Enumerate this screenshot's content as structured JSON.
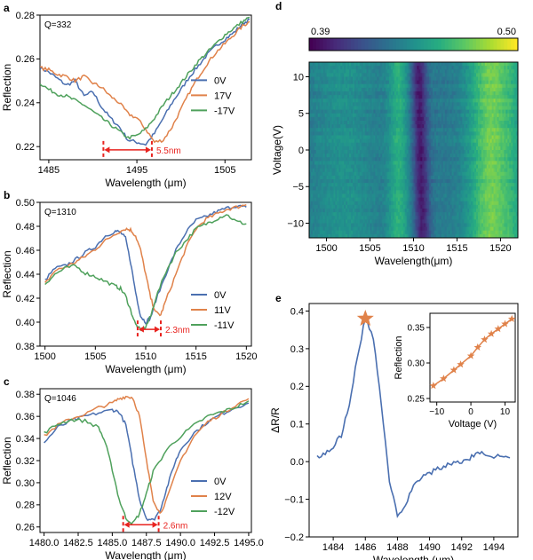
{
  "figure": {
    "background": "#ffffff"
  },
  "colors": {
    "blue": "#4a6fb0",
    "orange": "#e0824a",
    "green": "#4fa15c",
    "red": "#e8231f"
  },
  "chart_data": [
    {
      "id": "a",
      "type": "line",
      "panel_label": "a",
      "annotation": "Q=332",
      "xlabel": "Wavelength (μm)",
      "ylabel": "Reflection",
      "xlim": [
        1484,
        1508
      ],
      "ylim": [
        0.214,
        0.28
      ],
      "xticks": [
        1485,
        1495,
        1505
      ],
      "xtick_labels": [
        "1485",
        "1495",
        "1505"
      ],
      "yticks": [
        0.22,
        0.24,
        0.26,
        0.28
      ],
      "ytick_labels": [
        "0.22",
        "0.24",
        "0.26",
        "0.28"
      ],
      "series": [
        {
          "name": "0V",
          "color": "#4a6fb0",
          "x": [
            1484,
            1485,
            1486,
            1487,
            1488,
            1489,
            1490,
            1491,
            1492,
            1493,
            1494,
            1495,
            1496,
            1497,
            1498,
            1499,
            1500,
            1501,
            1502,
            1503,
            1504,
            1505,
            1506,
            1507,
            1507.8
          ],
          "y": [
            0.256,
            0.254,
            0.251,
            0.248,
            0.25,
            0.243,
            0.245,
            0.238,
            0.233,
            0.229,
            0.223,
            0.222,
            0.221,
            0.226,
            0.233,
            0.24,
            0.246,
            0.252,
            0.257,
            0.262,
            0.266,
            0.269,
            0.272,
            0.276,
            0.278
          ]
        },
        {
          "name": "17V",
          "color": "#e0824a",
          "x": [
            1484,
            1485,
            1486,
            1487,
            1488,
            1489,
            1490,
            1491,
            1492,
            1493,
            1494,
            1495,
            1496,
            1497,
            1498,
            1499,
            1500,
            1501,
            1502,
            1503,
            1504,
            1505,
            1506,
            1507,
            1507.8
          ],
          "y": [
            0.256,
            0.255,
            0.253,
            0.252,
            0.25,
            0.252,
            0.249,
            0.247,
            0.243,
            0.24,
            0.235,
            0.233,
            0.228,
            0.222,
            0.223,
            0.229,
            0.237,
            0.245,
            0.252,
            0.258,
            0.263,
            0.267,
            0.271,
            0.275,
            0.277
          ]
        },
        {
          "name": "-17V",
          "color": "#4fa15c",
          "x": [
            1484,
            1485,
            1486,
            1487,
            1488,
            1489,
            1490,
            1491,
            1492,
            1493,
            1494,
            1495,
            1496,
            1497,
            1498,
            1499,
            1500,
            1501,
            1502,
            1503,
            1504,
            1505,
            1506,
            1507,
            1507.8
          ],
          "y": [
            0.249,
            0.246,
            0.244,
            0.243,
            0.241,
            0.239,
            0.236,
            0.233,
            0.23,
            0.227,
            0.224,
            0.225,
            0.228,
            0.233,
            0.239,
            0.244,
            0.249,
            0.254,
            0.259,
            0.263,
            0.267,
            0.271,
            0.274,
            0.277,
            0.279
          ]
        }
      ],
      "legend": {
        "position": "center-right"
      },
      "arrow": {
        "x1": 1491.2,
        "x2": 1496.7,
        "y": 0.2185,
        "label": "5.5nm"
      }
    },
    {
      "id": "b",
      "type": "line",
      "panel_label": "b",
      "annotation": "Q=1310",
      "xlabel": "Wavelength (μm)",
      "ylabel": "Reflection",
      "xlim": [
        1499.5,
        1520.5
      ],
      "ylim": [
        0.38,
        0.5
      ],
      "xticks": [
        1500,
        1505,
        1510,
        1515,
        1520
      ],
      "xtick_labels": [
        "1500",
        "1505",
        "1510",
        "1515",
        "1520"
      ],
      "yticks": [
        0.38,
        0.4,
        0.42,
        0.44,
        0.46,
        0.48,
        0.5
      ],
      "ytick_labels": [
        "0.38",
        "0.40",
        "0.42",
        "0.44",
        "0.46",
        "0.48",
        "0.50"
      ],
      "series": [
        {
          "name": "0V",
          "color": "#4a6fb0",
          "x": [
            1500,
            1501,
            1502,
            1503,
            1504,
            1505,
            1506,
            1507,
            1507.5,
            1508,
            1508.5,
            1509,
            1509.5,
            1510,
            1510.5,
            1511,
            1512,
            1513,
            1514,
            1515,
            1516,
            1517,
            1518,
            1519,
            1520
          ],
          "y": [
            0.435,
            0.445,
            0.447,
            0.452,
            0.458,
            0.463,
            0.472,
            0.476,
            0.475,
            0.47,
            0.45,
            0.425,
            0.405,
            0.4,
            0.404,
            0.418,
            0.44,
            0.46,
            0.475,
            0.485,
            0.488,
            0.492,
            0.495,
            0.497,
            0.496
          ]
        },
        {
          "name": "11V",
          "color": "#e0824a",
          "x": [
            1500,
            1501,
            1502,
            1503,
            1504,
            1505,
            1506,
            1507,
            1508,
            1508.5,
            1509,
            1509.5,
            1510,
            1510.5,
            1511,
            1511.5,
            1512,
            1513,
            1514,
            1515,
            1516,
            1517,
            1518,
            1519,
            1520
          ],
          "y": [
            0.432,
            0.443,
            0.446,
            0.45,
            0.455,
            0.461,
            0.468,
            0.474,
            0.478,
            0.477,
            0.472,
            0.46,
            0.44,
            0.42,
            0.408,
            0.406,
            0.418,
            0.44,
            0.462,
            0.478,
            0.486,
            0.49,
            0.494,
            0.496,
            0.498
          ]
        },
        {
          "name": "-11V",
          "color": "#4fa15c",
          "x": [
            1500,
            1501,
            1502,
            1503,
            1504,
            1505,
            1506,
            1507,
            1507.5,
            1508,
            1508.5,
            1509,
            1509.5,
            1510,
            1510.5,
            1511,
            1512,
            1513,
            1514,
            1515,
            1516,
            1517,
            1518,
            1519,
            1520
          ],
          "y": [
            0.432,
            0.44,
            0.445,
            0.447,
            0.441,
            0.438,
            0.434,
            0.43,
            0.428,
            0.422,
            0.41,
            0.398,
            0.393,
            0.396,
            0.405,
            0.42,
            0.442,
            0.458,
            0.468,
            0.478,
            0.482,
            0.486,
            0.49,
            0.484,
            0.482
          ]
        }
      ],
      "legend": {
        "position": "bottom-right"
      },
      "arrow": {
        "x1": 1509.2,
        "x2": 1511.5,
        "y": 0.394,
        "label": "2.3nm"
      }
    },
    {
      "id": "c",
      "type": "line",
      "panel_label": "c",
      "annotation": "Q=1046",
      "xlabel": "Wavelength (μm)",
      "ylabel": "Reflection",
      "xlim": [
        1479.7,
        1495.2
      ],
      "ylim": [
        0.255,
        0.385
      ],
      "xticks": [
        1480.0,
        1482.5,
        1485.0,
        1487.5,
        1490.0,
        1492.5,
        1495.0
      ],
      "xtick_labels": [
        "1480.0",
        "1482.5",
        "1485.0",
        "1487.5",
        "1490.0",
        "1492.5",
        "1495.0"
      ],
      "yticks": [
        0.26,
        0.28,
        0.3,
        0.32,
        0.34,
        0.36,
        0.38
      ],
      "ytick_labels": [
        "0.26",
        "0.28",
        "0.30",
        "0.32",
        "0.34",
        "0.36",
        "0.38"
      ],
      "series": [
        {
          "name": "0V",
          "color": "#4a6fb0",
          "x": [
            1480,
            1481,
            1482,
            1483,
            1484,
            1485,
            1485.5,
            1486,
            1486.5,
            1487,
            1487.5,
            1488,
            1488.5,
            1489,
            1489.5,
            1490,
            1491,
            1492,
            1493,
            1494,
            1495
          ],
          "y": [
            0.336,
            0.35,
            0.356,
            0.36,
            0.363,
            0.366,
            0.364,
            0.352,
            0.318,
            0.285,
            0.268,
            0.266,
            0.275,
            0.295,
            0.315,
            0.33,
            0.345,
            0.355,
            0.362,
            0.368,
            0.372
          ]
        },
        {
          "name": "12V",
          "color": "#e0824a",
          "x": [
            1480,
            1481,
            1482,
            1483,
            1484,
            1485,
            1485.5,
            1486,
            1486.5,
            1487,
            1487.5,
            1488,
            1488.5,
            1489,
            1490,
            1491,
            1492,
            1493,
            1494,
            1495
          ],
          "y": [
            0.342,
            0.352,
            0.358,
            0.362,
            0.368,
            0.372,
            0.376,
            0.378,
            0.377,
            0.36,
            0.32,
            0.285,
            0.272,
            0.285,
            0.32,
            0.342,
            0.355,
            0.362,
            0.37,
            0.376
          ]
        },
        {
          "name": "-12V",
          "color": "#4fa15c",
          "x": [
            1480,
            1481,
            1482,
            1483,
            1484,
            1484.5,
            1485,
            1485.5,
            1486,
            1486.5,
            1487,
            1487.5,
            1488,
            1489,
            1490,
            1491,
            1492,
            1493,
            1494,
            1495
          ],
          "y": [
            0.345,
            0.353,
            0.357,
            0.356,
            0.35,
            0.336,
            0.312,
            0.285,
            0.268,
            0.263,
            0.272,
            0.29,
            0.31,
            0.33,
            0.342,
            0.352,
            0.36,
            0.364,
            0.368,
            0.374
          ]
        }
      ],
      "legend": {
        "position": "bottom-right"
      },
      "arrow": {
        "x1": 1485.8,
        "x2": 1488.4,
        "y": 0.262,
        "label": "2.6nm"
      }
    },
    {
      "id": "d",
      "type": "heatmap",
      "panel_label": "d",
      "xlabel": "Wavelength(μm)",
      "ylabel": "Voltage(V)",
      "xlim": [
        1498,
        1522
      ],
      "ylim": [
        -12,
        12
      ],
      "xticks": [
        1500,
        1505,
        1510,
        1515,
        1520
      ],
      "xtick_labels": [
        "1500",
        "1505",
        "1510",
        "1515",
        "1520"
      ],
      "yticks": [
        -10,
        -5,
        0,
        5,
        10
      ],
      "ytick_labels": [
        "−10",
        "−5",
        "0",
        "5",
        "10"
      ],
      "colorbar": {
        "min": 0.39,
        "max": 0.5,
        "min_label": "0.39",
        "max_label": "0.50",
        "colormap": "viridis"
      },
      "features": {
        "dip_center": 1510.8,
        "dip_width": 0.9,
        "bright_band_center": 1519.0,
        "bright_band_width": 2.6
      }
    },
    {
      "id": "e",
      "type": "line",
      "panel_label": "e",
      "xlabel": "Wavelength (μm)",
      "ylabel": "ΔR/R",
      "xlim": [
        1482.5,
        1495.5
      ],
      "ylim": [
        -0.2,
        0.42
      ],
      "xticks": [
        1484,
        1486,
        1488,
        1490,
        1492,
        1494
      ],
      "xtick_labels": [
        "1484",
        "1486",
        "1488",
        "1490",
        "1492",
        "1494"
      ],
      "yticks": [
        -0.2,
        -0.1,
        0.0,
        0.1,
        0.2,
        0.3,
        0.4
      ],
      "ytick_labels": [
        "−0.2",
        "−0.1",
        "0.0",
        "0.1",
        "0.2",
        "0.3",
        "0.4"
      ],
      "series": [
        {
          "name": "ΔR/R",
          "color": "#4a6fb0",
          "x": [
            1483,
            1483.5,
            1484,
            1484.5,
            1485,
            1485.5,
            1486,
            1486.5,
            1487,
            1487.5,
            1488,
            1488.5,
            1489,
            1489.5,
            1490,
            1490.5,
            1491,
            1491.5,
            1492,
            1492.5,
            1493,
            1493.5,
            1494,
            1494.5,
            1495
          ],
          "y": [
            0.012,
            0.02,
            0.04,
            0.07,
            0.15,
            0.28,
            0.38,
            0.33,
            0.15,
            -0.05,
            -0.14,
            -0.12,
            -0.06,
            -0.04,
            -0.03,
            -0.02,
            -0.01,
            -0.005,
            0.0,
            0.01,
            0.02,
            0.022,
            0.015,
            0.012,
            0.01
          ]
        }
      ],
      "marker": {
        "x": 1486,
        "y": 0.38,
        "shape": "star",
        "color": "#e0824a"
      },
      "inset": {
        "xlabel": "Voltage (V)",
        "ylabel": "Reflection",
        "xlim": [
          -12,
          13
        ],
        "ylim": [
          0.245,
          0.37
        ],
        "xticks": [
          -10,
          0,
          10
        ],
        "xtick_labels": [
          "−10",
          "0",
          "10"
        ],
        "yticks": [
          0.25,
          0.3,
          0.35
        ],
        "ytick_labels": [
          "0.25",
          "0.30",
          "0.35"
        ],
        "x": [
          -11,
          -8,
          -5,
          -3,
          0,
          2,
          4,
          6,
          8,
          10,
          12
        ],
        "y": [
          0.268,
          0.278,
          0.29,
          0.298,
          0.31,
          0.322,
          0.333,
          0.341,
          0.348,
          0.355,
          0.362
        ],
        "color": "#e0824a"
      }
    }
  ]
}
